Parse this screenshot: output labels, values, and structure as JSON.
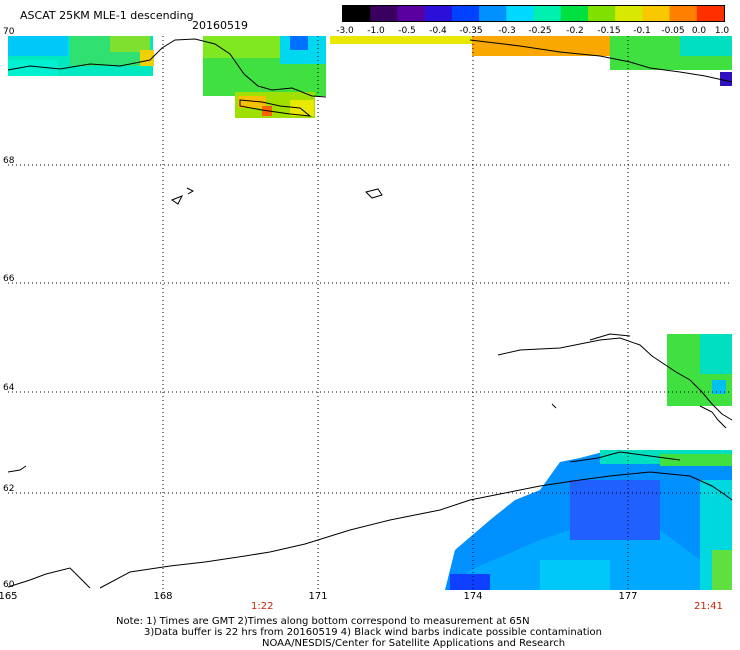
{
  "header": {
    "title": "ASCAT 25KM MLE-1 descending",
    "date": "20160519"
  },
  "colorbar": {
    "labels": [
      "-3.0",
      "-1.0",
      "-0.5",
      "-0.4",
      "-0.35",
      "-0.3",
      "-0.25",
      "-0.2",
      "-0.15",
      "-0.1",
      "-0.05",
      "0.0",
      "1.0"
    ],
    "colors": [
      "#000000",
      "#3a0060",
      "#5a00a0",
      "#2a10d8",
      "#0040ff",
      "#0090ff",
      "#00d8ff",
      "#00f0b0",
      "#00e040",
      "#80e000",
      "#d8e800",
      "#f8c800",
      "#ff8000",
      "#ff3000"
    ]
  },
  "map": {
    "lat_labels": [
      "70",
      "68",
      "66",
      "64",
      "62",
      "60"
    ],
    "lon_labels": [
      "165",
      "168",
      "171",
      "174",
      "177"
    ],
    "time_labels": [
      "1:22",
      "21:41"
    ]
  },
  "footer": {
    "line1": "Note: 1) Times are GMT 2)Times along bottom correspond to measurement at 65N",
    "line2": "3)Data buffer is 22 hrs from 20160519 4) Black wind barbs indicate possible contamination",
    "line3": "NOAA/NESDIS/Center for Satellite Applications and Research"
  }
}
